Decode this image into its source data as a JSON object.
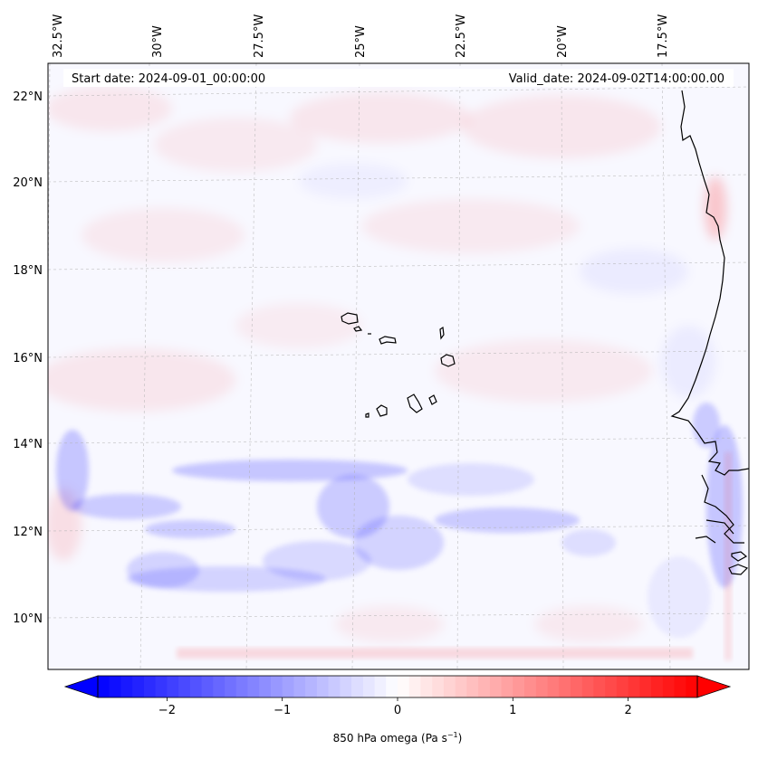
{
  "header": {
    "start_date": "Start date: 2024-09-01_00:00:00",
    "valid_date": "Valid_date: 2024-09-02T14:00:00.00"
  },
  "longitude_labels": [
    "32.5°W",
    "30°W",
    "27.5°W",
    "25°W",
    "22.5°W",
    "20°W",
    "17.5°W"
  ],
  "latitude_labels": [
    "22°N",
    "20°N",
    "18°N",
    "16°N",
    "14°N",
    "12°N",
    "10°N"
  ],
  "colorbar": {
    "label": "850 hPa omega (Pa s",
    "label_exponent": "−1",
    "label_suffix": ")",
    "ticks": [
      "−2",
      "−1",
      "0",
      "1",
      "2"
    ],
    "tick_values": [
      -2,
      -1,
      0,
      1,
      2
    ],
    "vmin": -2.6,
    "vmax": 2.6,
    "negative_color": "#0000ff",
    "neutral_color": "#ffffff",
    "positive_color": "#ff0000"
  },
  "colors": {
    "field_background": "#f8f8ff",
    "coastline": "#000000",
    "gridline": "#b0b0b0"
  }
}
